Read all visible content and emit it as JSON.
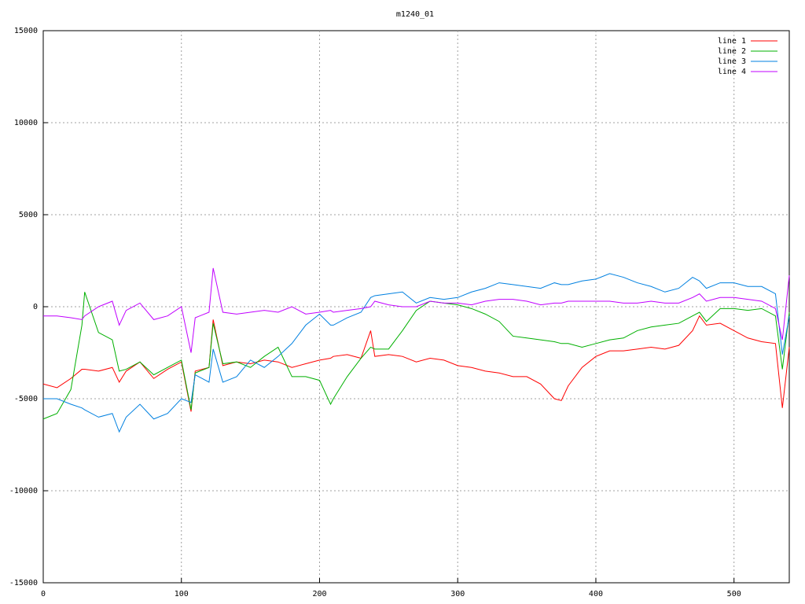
{
  "chart_data": {
    "type": "line",
    "title": "m1240_01",
    "x": [
      0,
      10,
      20,
      28,
      30,
      40,
      50,
      55,
      60,
      70,
      80,
      90,
      100,
      107,
      110,
      120,
      123,
      130,
      140,
      150,
      160,
      170,
      180,
      190,
      200,
      208,
      210,
      220,
      230,
      237,
      240,
      250,
      260,
      270,
      280,
      290,
      300,
      310,
      320,
      330,
      340,
      350,
      360,
      370,
      375,
      380,
      390,
      400,
      410,
      420,
      430,
      440,
      450,
      460,
      470,
      475,
      480,
      490,
      500,
      510,
      520,
      530,
      535,
      540
    ],
    "series": [
      {
        "name": "line 1",
        "color": "#ff0000",
        "values": [
          -4200,
          -4400,
          -3900,
          -3400,
          -3400,
          -3500,
          -3300,
          -4100,
          -3500,
          -3000,
          -3900,
          -3400,
          -3000,
          -5700,
          -3500,
          -3300,
          -700,
          -3200,
          -3000,
          -3100,
          -2900,
          -3000,
          -3300,
          -3100,
          -2900,
          -2800,
          -2700,
          -2600,
          -2800,
          -1300,
          -2700,
          -2600,
          -2700,
          -3000,
          -2800,
          -2900,
          -3200,
          -3300,
          -3500,
          -3600,
          -3800,
          -3800,
          -4200,
          -5000,
          -5100,
          -4300,
          -3300,
          -2700,
          -2400,
          -2400,
          -2300,
          -2200,
          -2300,
          -2100,
          -1300,
          -500,
          -1000,
          -900,
          -1300,
          -1700,
          -1900,
          -2000,
          -5500,
          -2200
        ]
      },
      {
        "name": "line 2",
        "color": "#00b000",
        "values": [
          -6100,
          -5800,
          -4500,
          -1000,
          800,
          -1400,
          -1800,
          -3500,
          -3400,
          -3000,
          -3700,
          -3300,
          -2900,
          -5600,
          -3600,
          -3300,
          -900,
          -3100,
          -3000,
          -3300,
          -2700,
          -2200,
          -3800,
          -3800,
          -4000,
          -5300,
          -5000,
          -3800,
          -2800,
          -2200,
          -2300,
          -2300,
          -1300,
          -200,
          300,
          200,
          100,
          -100,
          -400,
          -800,
          -1600,
          -1700,
          -1800,
          -1900,
          -2000,
          -2000,
          -2200,
          -2000,
          -1800,
          -1700,
          -1300,
          -1100,
          -1000,
          -900,
          -500,
          -300,
          -800,
          -100,
          -100,
          -200,
          -100,
          -500,
          -3400,
          -300
        ]
      },
      {
        "name": "line 3",
        "color": "#0080e0",
        "values": [
          -5000,
          -5000,
          -5300,
          -5500,
          -5600,
          -6000,
          -5800,
          -6800,
          -6000,
          -5300,
          -6100,
          -5800,
          -5000,
          -5200,
          -3700,
          -4100,
          -2300,
          -4100,
          -3800,
          -2900,
          -3300,
          -2700,
          -2000,
          -1000,
          -400,
          -1000,
          -1000,
          -600,
          -300,
          500,
          600,
          700,
          800,
          200,
          500,
          400,
          500,
          800,
          1000,
          1300,
          1200,
          1100,
          1000,
          1300,
          1200,
          1200,
          1400,
          1500,
          1800,
          1600,
          1300,
          1100,
          800,
          1000,
          1600,
          1400,
          1000,
          1300,
          1300,
          1100,
          1100,
          700,
          -2600,
          -500
        ]
      },
      {
        "name": "line 4",
        "color": "#c000ff",
        "values": [
          -500,
          -500,
          -600,
          -700,
          -500,
          0,
          300,
          -1000,
          -200,
          200,
          -700,
          -500,
          0,
          -2500,
          -600,
          -300,
          2100,
          -300,
          -400,
          -300,
          -200,
          -300,
          0,
          -400,
          -300,
          -200,
          -300,
          -200,
          -100,
          0,
          300,
          100,
          0,
          0,
          300,
          200,
          200,
          100,
          300,
          400,
          400,
          300,
          100,
          200,
          200,
          300,
          300,
          300,
          300,
          200,
          200,
          300,
          200,
          200,
          500,
          700,
          300,
          500,
          500,
          400,
          300,
          -100,
          -1800,
          1700
        ]
      }
    ],
    "xlim": [
      0,
      540
    ],
    "ylim": [
      -15000,
      15000
    ],
    "xticks": [
      0,
      100,
      200,
      300,
      400,
      500
    ],
    "yticks": [
      -15000,
      -10000,
      -5000,
      0,
      5000,
      10000,
      15000
    ],
    "grid": true,
    "legend": "top-right"
  }
}
